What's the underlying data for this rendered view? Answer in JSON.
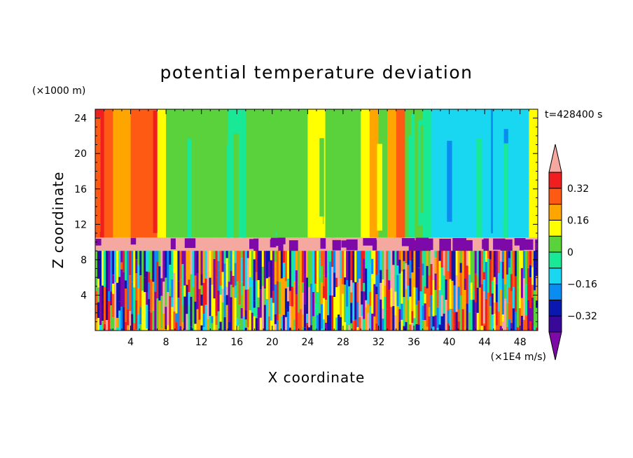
{
  "chart_data": {
    "type": "heatmap",
    "title": "potential temperature deviation",
    "xlabel": "X coordinate",
    "ylabel": "Z coordinate",
    "x_unit": "(×1E4 m/s)",
    "y_unit": "(×1000 m)",
    "time_label": "t=428400 s",
    "xlim": [
      0,
      50
    ],
    "ylim": [
      0,
      25
    ],
    "x_ticks": [
      4,
      8,
      12,
      16,
      20,
      24,
      28,
      32,
      36,
      40,
      44,
      48
    ],
    "y_ticks": [
      4,
      8,
      12,
      16,
      20,
      24
    ],
    "colorbar": {
      "levels": [
        -0.48,
        -0.4,
        -0.32,
        -0.24,
        -0.16,
        -0.08,
        0,
        0.08,
        0.16,
        0.24,
        0.32,
        0.4
      ],
      "labels": [
        "0.32",
        "0.16",
        "0",
        "−0.16",
        "−0.32"
      ],
      "label_values": [
        0.32,
        0.16,
        0,
        -0.16,
        -0.32
      ],
      "colors": [
        "#7d0aa8",
        "#3a0898",
        "#0a18b0",
        "#0a8cf0",
        "#19d7f0",
        "#19e896",
        "#5ad23c",
        "#ffff00",
        "#ffa500",
        "#ff5a14",
        "#f01e1e",
        "#f5a8a0"
      ],
      "extend": "both"
    },
    "regions": {
      "upper_layer_z": [
        10.5,
        25
      ],
      "inversion_z": [
        9,
        10.5
      ],
      "lower_layer_z": [
        0,
        9
      ]
    }
  }
}
